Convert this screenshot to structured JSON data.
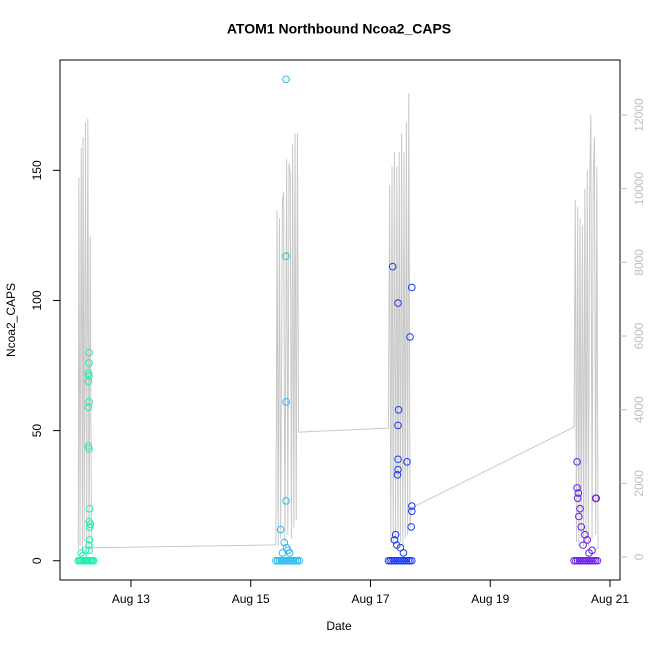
{
  "chart_data": {
    "type": "scatter",
    "title": "ATOM1 Northbound Ncoa2_CAPS",
    "xlabel": "Date",
    "ylabel": "Ncoa2_CAPS",
    "xlim": [
      11.815,
      21.167
    ],
    "xticks": [
      {
        "value": 13,
        "label": "Aug 13"
      },
      {
        "value": 15,
        "label": "Aug 15"
      },
      {
        "value": 17,
        "label": "Aug 17"
      },
      {
        "value": 19,
        "label": "Aug 19"
      },
      {
        "value": 21,
        "label": "Aug 21"
      }
    ],
    "ylim": [
      -7.4,
      192.4
    ],
    "yticks": [
      0,
      50,
      100,
      150
    ],
    "y2lim": [
      -624,
      13494
    ],
    "y2ticks": [
      0,
      2000,
      4000,
      6000,
      8000,
      10000,
      12000
    ],
    "y2color": "#bebebe",
    "series": [
      {
        "color": "#22eeb0",
        "x": [
          12.12,
          12.14,
          12.16,
          12.18,
          12.2,
          12.22,
          12.24,
          12.26,
          12.28,
          12.3,
          12.32,
          12.34,
          12.36,
          12.38,
          12.3,
          12.3,
          12.29,
          12.3,
          12.29,
          12.3,
          12.29,
          12.29,
          12.3,
          12.31,
          12.3,
          12.32,
          12.31,
          12.31,
          12.3,
          12.3,
          12.17,
          12.2,
          12.24
        ],
        "values": [
          0,
          0,
          0,
          0,
          0,
          0,
          0,
          0,
          0,
          0,
          0,
          0,
          0,
          0,
          80,
          76,
          72,
          71,
          69,
          61,
          59,
          44,
          43,
          20,
          15,
          14,
          13,
          8,
          6,
          4,
          3,
          2,
          4
        ]
      },
      {
        "color": "#22bff0",
        "x": [
          15.42,
          15.45,
          15.48,
          15.51,
          15.54,
          15.57,
          15.6,
          15.63,
          15.66,
          15.69,
          15.72,
          15.75,
          15.78,
          15.81,
          15.59,
          15.59,
          15.59,
          15.59,
          15.5,
          15.56,
          15.6,
          15.62,
          15.53,
          15.65
        ],
        "values": [
          0,
          0,
          0,
          0,
          0,
          0,
          0,
          0,
          0,
          0,
          0,
          0,
          0,
          0,
          185,
          117,
          61,
          23,
          12,
          7,
          5,
          4,
          3,
          3
        ]
      },
      {
        "color": "#1a3cf0",
        "x": [
          17.3,
          17.33,
          17.36,
          17.39,
          17.42,
          17.45,
          17.48,
          17.51,
          17.54,
          17.57,
          17.6,
          17.63,
          17.66,
          17.69,
          17.37,
          17.46,
          17.47,
          17.46,
          17.46,
          17.45,
          17.46,
          17.61,
          17.66,
          17.69,
          17.69,
          17.69,
          17.68,
          17.4,
          17.44,
          17.5,
          17.55,
          17.42
        ],
        "values": [
          0,
          0,
          0,
          0,
          0,
          0,
          0,
          0,
          0,
          0,
          0,
          0,
          0,
          0,
          113,
          99,
          58,
          52,
          35,
          33,
          39,
          38,
          86,
          105,
          21,
          19,
          13,
          8,
          6,
          5,
          3,
          10
        ]
      },
      {
        "color": "#6a1ee8",
        "x": [
          20.4,
          20.43,
          20.46,
          20.49,
          20.52,
          20.55,
          20.58,
          20.61,
          20.64,
          20.67,
          20.7,
          20.73,
          20.76,
          20.79,
          20.45,
          20.45,
          20.47,
          20.46,
          20.5,
          20.48,
          20.52,
          20.76,
          20.77,
          20.58,
          20.62,
          20.55,
          20.7,
          20.65
        ],
        "values": [
          0,
          0,
          0,
          0,
          0,
          0,
          0,
          0,
          0,
          0,
          0,
          0,
          0,
          0,
          38,
          28,
          26,
          24,
          20,
          17,
          13,
          24,
          24,
          10,
          8,
          6,
          4,
          3
        ]
      },
      {
        "type": "line",
        "axis": "y2",
        "color": "#c8c8c8",
        "x": [
          12.12,
          12.13,
          12.15,
          12.17,
          12.19,
          12.2,
          12.22,
          12.24,
          12.26,
          12.28,
          12.3,
          12.32,
          12.34,
          15.42,
          15.44,
          15.46,
          15.48,
          15.5,
          15.53,
          15.55,
          15.57,
          15.6,
          15.62,
          15.64,
          15.66,
          15.68,
          15.7,
          15.72,
          15.74,
          15.76,
          15.78,
          15.8,
          17.3,
          17.32,
          17.34,
          17.36,
          17.38,
          17.4,
          17.42,
          17.44,
          17.46,
          17.48,
          17.5,
          17.52,
          17.54,
          17.56,
          17.58,
          17.6,
          17.62,
          17.64,
          17.66,
          17.68,
          20.4,
          20.42,
          20.44,
          20.46,
          20.48,
          20.5,
          20.52,
          20.54,
          20.56,
          20.58,
          20.6,
          20.62,
          20.64,
          20.66,
          20.68,
          20.7,
          20.72,
          20.74,
          20.76,
          20.78,
          20.8
        ],
        "values": [
          200,
          10300,
          300,
          11100,
          200,
          11400,
          400,
          11800,
          300,
          11900,
          200,
          8700,
          250,
          330,
          9400,
          300,
          9200,
          500,
          9700,
          9900,
          400,
          10800,
          600,
          10700,
          10400,
          500,
          11200,
          800,
          11500,
          1000,
          11500,
          3390,
          3500,
          10100,
          400,
          10600,
          300,
          11000,
          500,
          10600,
          300,
          11000,
          400,
          11500,
          300,
          11000,
          500,
          11800,
          600,
          12600,
          800,
          1330,
          3530,
          9700,
          400,
          9500,
          300,
          9200,
          500,
          9000,
          300,
          10000,
          400,
          10500,
          300,
          10000,
          12000,
          500,
          10300,
          11400,
          600,
          10600,
          200
        ]
      }
    ]
  }
}
